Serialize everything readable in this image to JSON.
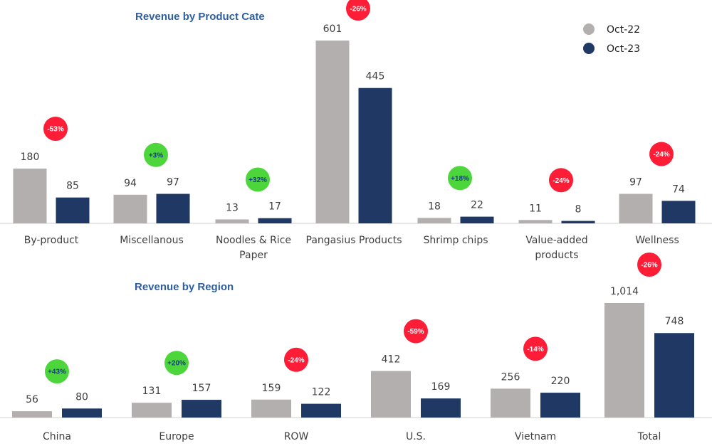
{
  "colors": {
    "prev": "#b3afae",
    "curr": "#1f3864",
    "neg_badge": "#fe1d36",
    "neg_badge_text": "#ffffff",
    "pos_badge": "#4cd63c",
    "pos_badge_text": "#1b3a8a",
    "title": "#2e5fa3",
    "axis": "#cfcfcf"
  },
  "legend": {
    "prev_label": "Oct-22",
    "curr_label": "Oct-23"
  },
  "chart_data": [
    {
      "type": "bar",
      "title": "Revenue by Product Cate",
      "categories": [
        "By-product",
        "Miscellanous",
        "Noodles & Rice Paper",
        "Pangasius Products",
        "Shrimp chips",
        "Value-added products",
        "Wellness"
      ],
      "category_lines": [
        [
          "By-product"
        ],
        [
          "Miscellanous"
        ],
        [
          "Noodles & Rice",
          "Paper"
        ],
        [
          "Pangasius Products"
        ],
        [
          "Shrimp chips"
        ],
        [
          "Value-added",
          "products"
        ],
        [
          "Wellness"
        ]
      ],
      "series": [
        {
          "name": "Oct-22",
          "values": [
            180,
            94,
            13,
            601,
            18,
            11,
            97
          ],
          "labels": [
            "180",
            "94",
            "13",
            "601",
            "18",
            "11",
            "97"
          ]
        },
        {
          "name": "Oct-23",
          "values": [
            85,
            97,
            17,
            445,
            22,
            8,
            74
          ],
          "labels": [
            "85",
            "97",
            "17",
            "445",
            "22",
            "8",
            "74"
          ]
        }
      ],
      "changes": [
        "-53%",
        "+3%",
        "+32%",
        "-26%",
        "+18%",
        "-24%",
        "-24%"
      ],
      "legend": "top-right"
    },
    {
      "type": "bar",
      "title": "Revenue by Region",
      "categories": [
        "China",
        "Europe",
        "ROW",
        "U.S.",
        "Vietnam",
        "Total"
      ],
      "category_lines": [
        [
          "China"
        ],
        [
          "Europe"
        ],
        [
          "ROW"
        ],
        [
          "U.S."
        ],
        [
          "Vietnam"
        ],
        [
          "Total"
        ]
      ],
      "series": [
        {
          "name": "Oct-22",
          "values": [
            56,
            131,
            159,
            412,
            256,
            1014
          ],
          "labels": [
            "56",
            "131",
            "159",
            "412",
            "256",
            "1,014"
          ]
        },
        {
          "name": "Oct-23",
          "values": [
            80,
            157,
            122,
            169,
            220,
            748
          ],
          "labels": [
            "80",
            "157",
            "122",
            "169",
            "220",
            "748"
          ]
        }
      ],
      "changes": [
        "+43%",
        "+20%",
        "-24%",
        "-59%",
        "-14%",
        "-26%"
      ]
    }
  ]
}
